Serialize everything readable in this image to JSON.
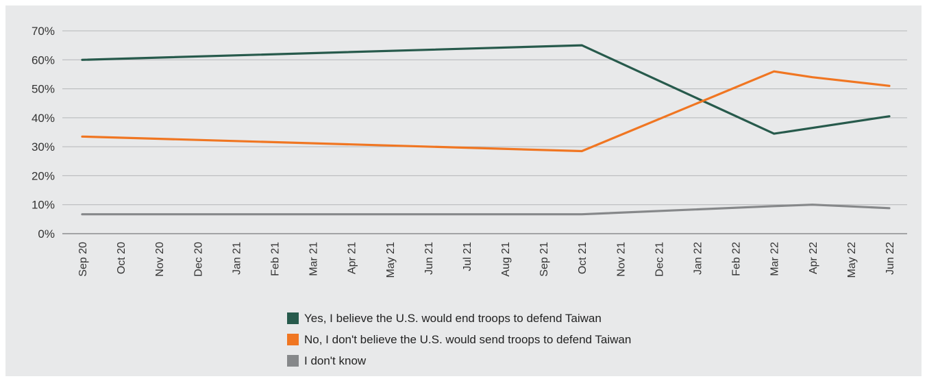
{
  "chart_data": {
    "type": "line",
    "x": [
      "Sep 20",
      "Oct 20",
      "Nov 20",
      "Dec 20",
      "Jan 21",
      "Feb 21",
      "Mar 21",
      "Apr 21",
      "May 21",
      "Jun 21",
      "Jul 21",
      "Aug 21",
      "Sep 21",
      "Oct 21",
      "Nov 21",
      "Dec 21",
      "Jan 22",
      "Feb 22",
      "Mar 22",
      "Apr 22",
      "May 22",
      "Jun 22"
    ],
    "ylim": [
      0,
      70
    ],
    "yticks": [
      0,
      10,
      20,
      30,
      40,
      50,
      60,
      70
    ],
    "ytick_labels": [
      "0%",
      "10%",
      "20%",
      "30%",
      "40%",
      "50%",
      "60%",
      "70%"
    ],
    "grid": true,
    "legend_position": "bottom-center",
    "series": [
      {
        "name": "Yes, I believe the U.S. would end troops to defend Taiwan",
        "color": "#275a4c",
        "points": [
          [
            "Sep 20",
            60
          ],
          [
            "Oct 21",
            65
          ],
          [
            "Mar 22",
            34.5
          ],
          [
            "Jun 22",
            40.5
          ]
        ]
      },
      {
        "name": "No, I don't believe the U.S. would send troops to defend Taiwan",
        "color": "#f07622",
        "points": [
          [
            "Sep 20",
            33.5
          ],
          [
            "Oct 21",
            28.5
          ],
          [
            "Mar 22",
            56
          ],
          [
            "Apr 22",
            54
          ],
          [
            "Jun 22",
            51
          ]
        ]
      },
      {
        "name": "I don't know",
        "color": "#86888a",
        "points": [
          [
            "Sep 20",
            6.7
          ],
          [
            "Oct 21",
            6.7
          ],
          [
            "Mar 22",
            9.5
          ],
          [
            "Apr 22",
            10
          ],
          [
            "Jun 22",
            8.8
          ]
        ]
      }
    ]
  }
}
